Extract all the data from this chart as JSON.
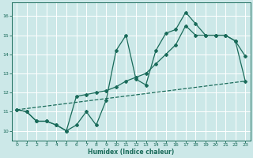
{
  "xlabel": "Humidex (Indice chaleur)",
  "bg_color": "#cce8e8",
  "grid_color": "#ffffff",
  "line_color": "#1a6b5a",
  "xlim": [
    -0.5,
    23.5
  ],
  "ylim": [
    9.5,
    16.7
  ],
  "xticks": [
    0,
    1,
    2,
    3,
    4,
    5,
    6,
    7,
    8,
    9,
    10,
    11,
    12,
    13,
    14,
    15,
    16,
    17,
    18,
    19,
    20,
    21,
    22,
    23
  ],
  "yticks": [
    10,
    11,
    12,
    13,
    14,
    15,
    16
  ],
  "line1_x": [
    0,
    1,
    2,
    3,
    4,
    5,
    6,
    7,
    8,
    9,
    10,
    11,
    12,
    13,
    14,
    15,
    16,
    17,
    18,
    19,
    20,
    21,
    22,
    23
  ],
  "line1_y": [
    11.1,
    11.0,
    10.5,
    10.5,
    10.3,
    10.0,
    10.3,
    11.0,
    10.3,
    11.6,
    14.2,
    15.0,
    12.7,
    12.4,
    14.2,
    15.1,
    15.3,
    16.2,
    15.6,
    15.0,
    15.0,
    15.0,
    14.7,
    13.9
  ],
  "line2_x": [
    0,
    1,
    2,
    3,
    4,
    5,
    6,
    7,
    8,
    9,
    10,
    11,
    12,
    13,
    14,
    15,
    16,
    17,
    18,
    19,
    20,
    21,
    22,
    23
  ],
  "line2_y": [
    11.1,
    11.0,
    10.5,
    10.5,
    10.3,
    10.0,
    11.8,
    11.9,
    12.0,
    12.1,
    12.3,
    12.6,
    12.8,
    13.0,
    13.5,
    14.0,
    14.5,
    15.5,
    15.0,
    15.0,
    15.0,
    15.0,
    14.7,
    12.6
  ],
  "line3_x": [
    0,
    23
  ],
  "line3_y": [
    11.1,
    12.6
  ]
}
